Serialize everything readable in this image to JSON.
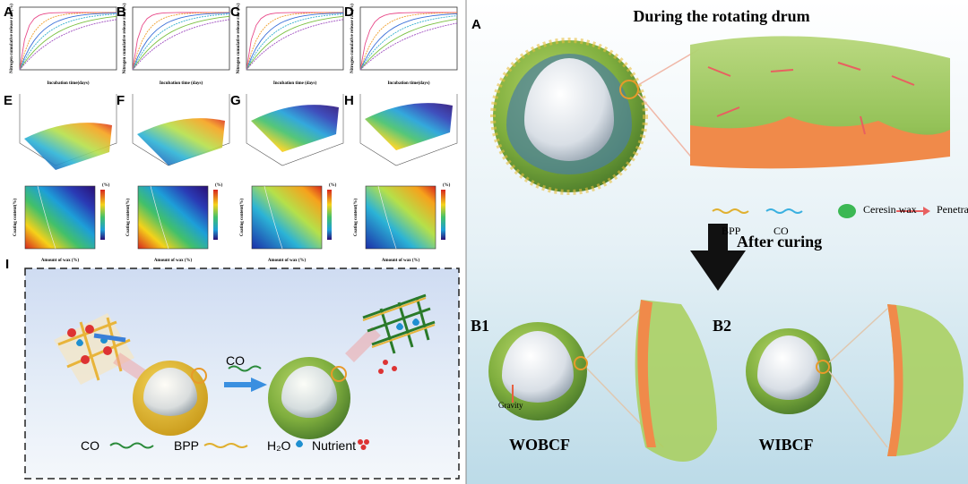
{
  "charts": [
    {
      "label": "A",
      "x_label": "Incubation time(days)",
      "y_label": "Nitrogen cumulative release rate(%)"
    },
    {
      "label": "B",
      "x_label": "Incubation time (days)",
      "y_label": "Nitrogen cumulative release rate (%)"
    },
    {
      "label": "C",
      "x_label": "Incubation time (days)",
      "y_label": "Nitrogen cumulative release rate (%)"
    },
    {
      "label": "D",
      "x_label": "Incubation time(days)",
      "y_label": "Nitrogen cumulative release rate(%)"
    }
  ],
  "surfaces": [
    {
      "label": "E"
    },
    {
      "label": "F"
    },
    {
      "label": "G"
    },
    {
      "label": "H"
    }
  ],
  "contours": {
    "x_label": "Amount of wax (%)",
    "y_label": "Coating content(%)",
    "unit": "(%)"
  },
  "panel_i": {
    "label": "I",
    "arrow_label": "CO",
    "legend": [
      "CO",
      "BPP",
      "H₂O",
      "Nutrient"
    ]
  },
  "panel_a": {
    "label": "A",
    "title": "During the rotating drum",
    "legend": [
      "BPP",
      "CO",
      "Ceresin wax",
      "Penetration direction"
    ],
    "arrow_label": "After curing"
  },
  "panel_b": {
    "b1": "B1",
    "b2": "B2",
    "gravity": "Gravity",
    "name1": "WOBCF",
    "name2": "WIBCF"
  }
}
